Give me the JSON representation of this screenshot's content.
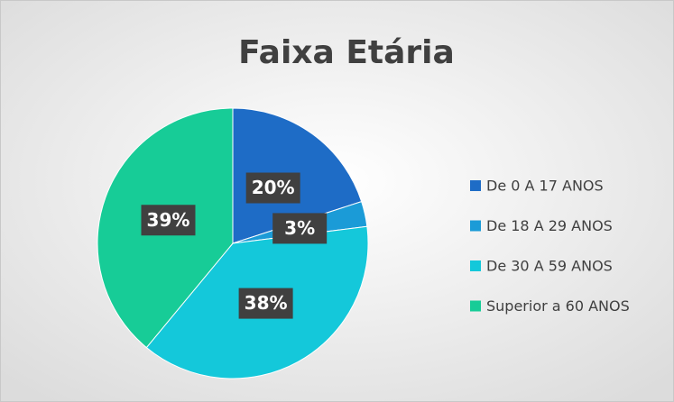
{
  "chart_data": {
    "type": "pie",
    "title": "Faixa Etária",
    "categories": [
      "De 0 A 17 ANOS",
      "De 18 A 29 ANOS",
      "De 30 A 59 ANOS",
      "Superior a 60 ANOS"
    ],
    "values": [
      20,
      3,
      38,
      39
    ],
    "value_labels": [
      "20%",
      "3%",
      "38%",
      "39%"
    ],
    "colors": [
      "#1e6cc6",
      "#1b9bd7",
      "#14c8da",
      "#17cc97"
    ],
    "legend": "right"
  }
}
